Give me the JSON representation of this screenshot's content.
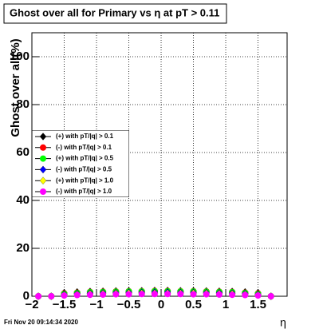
{
  "chart_data": {
    "type": "scatter",
    "title": "Ghost over all for Primary vs  η at pT > 0.11",
    "x_label": "η",
    "y_label": "Ghost over all(%)",
    "footer": "Fri Nov 20 09:14:34 2020",
    "xlim": [
      -2,
      1.95
    ],
    "ylim": [
      0,
      110
    ],
    "xticks": [
      {
        "value": -2,
        "label": "−2"
      },
      {
        "value": -1.5,
        "label": "−1.5"
      },
      {
        "value": -1,
        "label": "−1"
      },
      {
        "value": -0.5,
        "label": "−0.5"
      },
      0,
      0.5,
      1,
      1.5
    ],
    "yticks": [
      0,
      20,
      40,
      60,
      80,
      100
    ],
    "grid": true,
    "legend": "left",
    "x": [
      -1.9,
      -1.7,
      -1.5,
      -1.3,
      -1.1,
      -0.9,
      -0.7,
      -0.5,
      -0.3,
      -0.1,
      0.1,
      0.3,
      0.5,
      0.7,
      0.9,
      1.1,
      1.3,
      1.5,
      1.7
    ],
    "series": [
      {
        "name": "(+) with pT/|q| > 0.1",
        "color": "#000000",
        "marker": "diamond",
        "values": [
          0,
          0,
          1.5,
          1.8,
          2,
          2.1,
          2.2,
          2.3,
          2.3,
          2.4,
          2.4,
          2.3,
          2.3,
          2.2,
          2.1,
          2,
          1.8,
          1.5,
          0
        ]
      },
      {
        "name": "(-) with pT/|q| > 0.1",
        "color": "#ff0000",
        "marker": "circle",
        "values": [
          0,
          0,
          1.2,
          1.5,
          1.8,
          1.9,
          2,
          2.1,
          2.1,
          2.2,
          2.2,
          2.1,
          2.1,
          2,
          1.9,
          1.8,
          1.5,
          1.2,
          0
        ]
      },
      {
        "name": "(+) with pT/|q| > 0.5",
        "color": "#00ff00",
        "marker": "circle",
        "values": [
          0,
          0,
          1,
          1.4,
          1.7,
          1.8,
          1.9,
          2,
          2,
          2.1,
          2.1,
          2,
          2,
          1.9,
          1.8,
          1.7,
          1.4,
          1,
          0
        ]
      },
      {
        "name": "(-) with pT/|q| > 0.5",
        "color": "#0000ff",
        "marker": "diamond",
        "values": [
          0,
          0,
          0.8,
          1.1,
          1.3,
          1.4,
          1.5,
          1.6,
          1.6,
          1.7,
          1.7,
          1.6,
          1.6,
          1.5,
          1.4,
          1.3,
          1.1,
          0.8,
          0
        ]
      },
      {
        "name": "(+) with pT/|q| > 1.0",
        "color": "#ffff00",
        "marker": "diamond",
        "values": [
          0,
          0,
          0.5,
          0.8,
          1,
          1.1,
          1.2,
          1.3,
          1.3,
          1.3,
          1.3,
          1.3,
          1.3,
          1.2,
          1.1,
          1,
          0.8,
          0.5,
          0
        ]
      },
      {
        "name": "(-) with pT/|q| > 1.0",
        "color": "#ff00ff",
        "marker": "circle",
        "values": [
          0,
          0,
          0.3,
          0.5,
          0.6,
          0.7,
          0.8,
          0.8,
          0.9,
          0.9,
          0.9,
          0.9,
          0.8,
          0.8,
          0.7,
          0.6,
          0.5,
          0.3,
          0
        ]
      }
    ]
  }
}
